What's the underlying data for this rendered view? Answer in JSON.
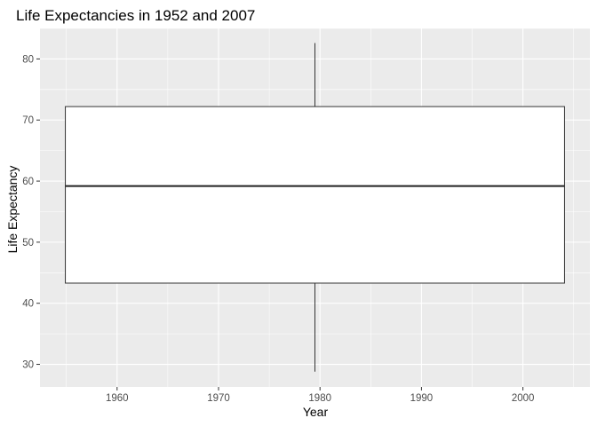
{
  "chart_data": {
    "type": "boxplot",
    "title": "Life Expectancies in 1952 and 2007",
    "xlabel": "Year",
    "ylabel": "Life Expectancy",
    "xlim": [
      1952.4,
      2006.6
    ],
    "ylim": [
      26.3,
      85.0
    ],
    "x_ticks": [
      1960,
      1970,
      1980,
      1990,
      2000
    ],
    "y_ticks": [
      30,
      40,
      50,
      60,
      70,
      80
    ],
    "grid": true,
    "legend": "none",
    "box": {
      "x_left": 1954.9,
      "x_right": 2004.1,
      "x_center": 1979.5,
      "whisker_low": 28.8,
      "q1": 43.3,
      "median": 59.2,
      "q3": 72.2,
      "whisker_high": 82.6
    },
    "colors": {
      "panel": "#ebebeb",
      "grid": "#ffffff",
      "box_fill": "#ffffff",
      "box_stroke": "#333333",
      "tick_text": "#4d4d4d"
    }
  }
}
